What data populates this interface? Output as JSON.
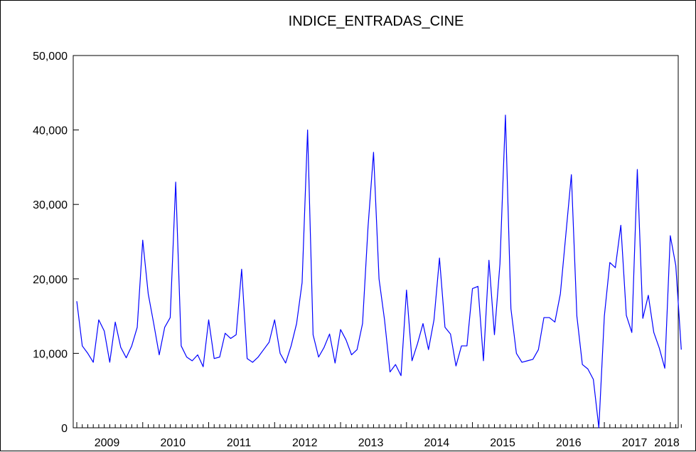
{
  "chart_data": {
    "type": "line",
    "title": "INDICE_ENTRADAS_CINE",
    "xlabel": "",
    "ylabel": "",
    "ylim": [
      0,
      50000
    ],
    "yticks": [
      "0",
      "10,000",
      "20,000",
      "30,000",
      "40,000",
      "50,000"
    ],
    "xticks": [
      "2009",
      "2010",
      "2011",
      "2012",
      "2013",
      "2014",
      "2015",
      "2016",
      "2017",
      "2018"
    ],
    "x_start": "2009-01",
    "frequency": "monthly",
    "grid": false,
    "legend": "none",
    "series": [
      {
        "color": "#0000ff",
        "values": [
          17000,
          11000,
          10000,
          8800,
          14500,
          13000,
          8800,
          14200,
          10800,
          9400,
          11000,
          13500,
          25200,
          18000,
          14000,
          9800,
          13500,
          14800,
          33000,
          11000,
          9500,
          9000,
          9800,
          8200,
          14500,
          9300,
          9500,
          12700,
          12000,
          12500,
          21300,
          9300,
          8800,
          9500,
          10500,
          11500,
          14500,
          10000,
          8700,
          11000,
          14000,
          19500,
          40000,
          12500,
          9500,
          10800,
          12600,
          8700,
          13200,
          11800,
          9800,
          10500,
          14000,
          27000,
          37000,
          20000,
          14500,
          7500,
          8500,
          7000,
          18500,
          9000,
          11300,
          14000,
          10500,
          14500,
          22800,
          13500,
          12600,
          8300,
          11000,
          11000,
          18700,
          19000,
          9000,
          22500,
          12500,
          22000,
          42000,
          16000,
          10000,
          8800,
          9000,
          9200,
          10500,
          14800,
          14800,
          14200,
          18000,
          26000,
          34000,
          15000,
          8500,
          7900,
          6500,
          0,
          15000,
          22200,
          21500,
          27200,
          15100,
          12800,
          34700,
          14700,
          17800,
          12800,
          10700,
          8000,
          25800,
          21800,
          10500
        ]
      }
    ]
  }
}
